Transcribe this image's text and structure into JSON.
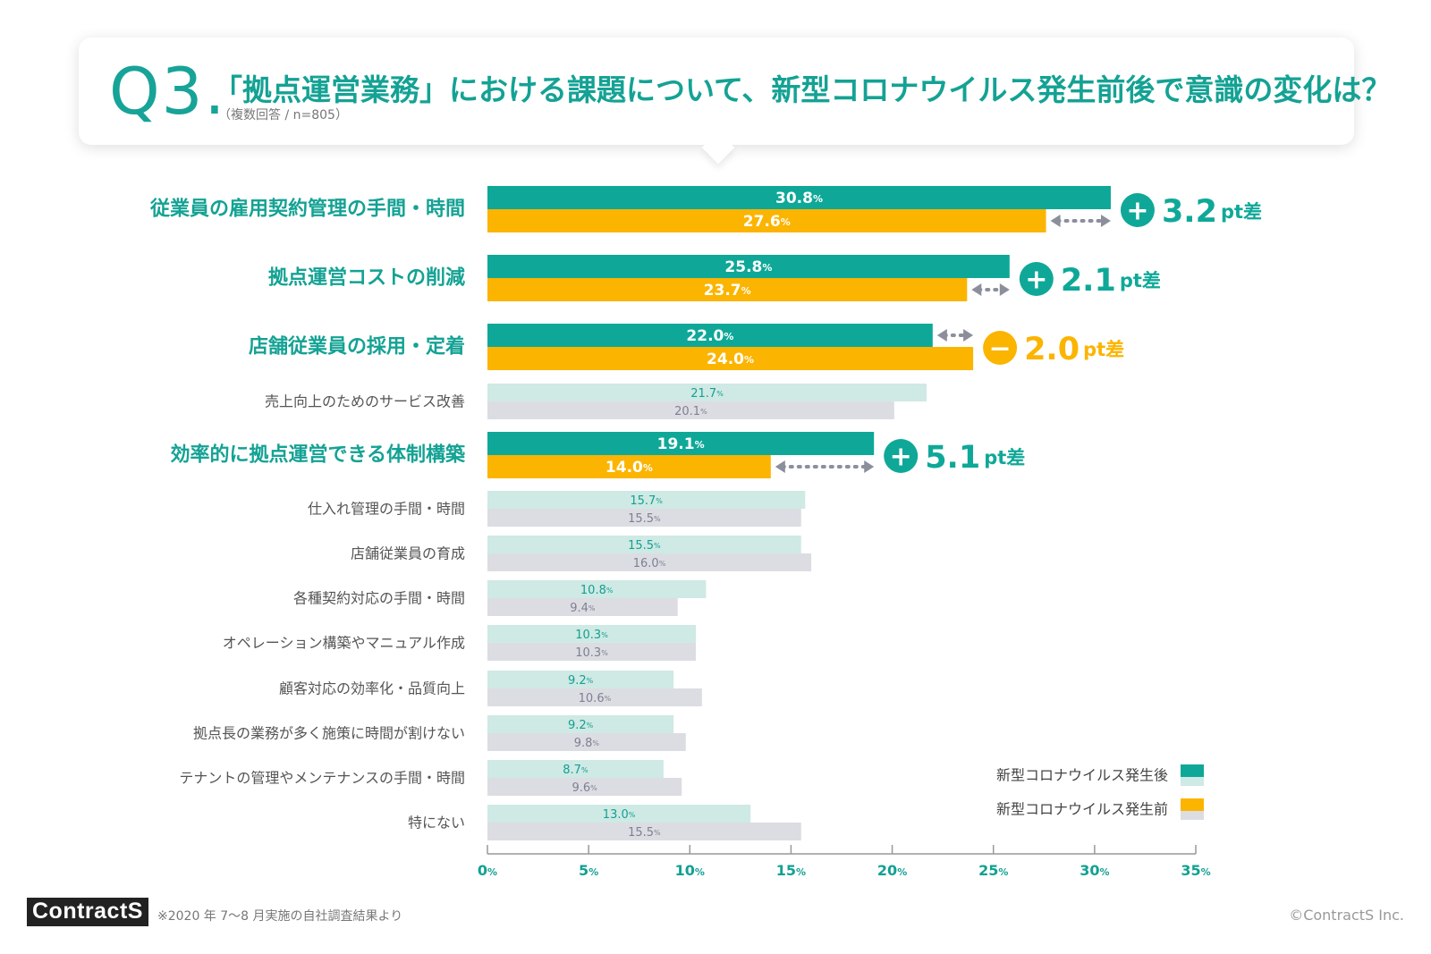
{
  "header": {
    "q_label": "Q3.",
    "title": "「拠点運営業務」における課題について、新型コロナウイルス発生前後で意識の変化は？",
    "subtitle": "（複数回答 / n=805）"
  },
  "colors": {
    "after_highlight": "#0fa898",
    "before_highlight": "#fbb400",
    "after_normal": "#cfe9e4",
    "before_normal": "#dcdde3",
    "label_highlight": "#14a294",
    "minus": "#fbb400",
    "plus": "#0fa898",
    "arrow": "#8b8f9c"
  },
  "chart_data": {
    "type": "bar",
    "orientation": "horizontal",
    "categories": [
      "従業員の雇用契約管理の手間・時間",
      "拠点運営コストの削減",
      "店舗従業員の採用・定着",
      "売上向上のためのサービス改善",
      "効率的に拠点運営できる体制構築",
      "仕入れ管理の手間・時間",
      "店舗従業員の育成",
      "各種契約対応の手間・時間",
      "オペレーション構築やマニュアル作成",
      "顧客対応の効率化・品質向上",
      "拠点長の業務が多く施策に時間が割けない",
      "テナントの管理やメンテナンスの手間・時間",
      "特にない"
    ],
    "highlighted": [
      true,
      true,
      true,
      false,
      true,
      false,
      false,
      false,
      false,
      false,
      false,
      false,
      false
    ],
    "series": [
      {
        "name": "新型コロナウイルス発生後",
        "values": [
          30.8,
          25.8,
          22.0,
          21.7,
          19.1,
          15.7,
          15.5,
          10.8,
          10.3,
          9.2,
          9.2,
          8.7,
          13.0
        ]
      },
      {
        "name": "新型コロナウイルス発生前",
        "values": [
          27.6,
          23.7,
          24.0,
          20.1,
          14.0,
          15.5,
          16.0,
          9.4,
          10.3,
          10.6,
          9.8,
          9.6,
          15.5
        ]
      }
    ],
    "value_unit": "%",
    "xlim": [
      0,
      35
    ],
    "xticks": [
      "0",
      "5",
      "10",
      "15",
      "20",
      "25",
      "30",
      "35"
    ],
    "annotations": [
      {
        "category_index": 0,
        "sign": "+",
        "value": "3.2",
        "unit": "pt差"
      },
      {
        "category_index": 1,
        "sign": "+",
        "value": "2.1",
        "unit": "pt差"
      },
      {
        "category_index": 2,
        "sign": "−",
        "value": "2.0",
        "unit": "pt差"
      },
      {
        "category_index": 4,
        "sign": "+",
        "value": "5.1",
        "unit": "pt差"
      }
    ],
    "legend": {
      "position": "bottom-right",
      "items": [
        "新型コロナウイルス発生後",
        "新型コロナウイルス発生前"
      ]
    }
  },
  "footer": {
    "brand": "ContractS",
    "note": "※2020 年 7〜8 月実施の自社調査結果より",
    "copyright": "©ContractS Inc."
  }
}
